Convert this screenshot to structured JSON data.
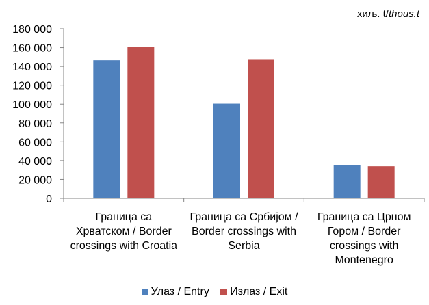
{
  "unit_note": {
    "prefix": "хиљ. t/",
    "italic": "thous.t"
  },
  "colors": {
    "entry": "#4F81BD",
    "exit": "#C0504D",
    "axis": "#868686"
  },
  "chart_data": {
    "type": "bar",
    "categories": [
      [
        "Граница са",
        "Хрватском / Border",
        "crossings with Croatia"
      ],
      [
        "Граница са Србијом /",
        "Border crossings with",
        "Serbia"
      ],
      [
        "Граница са Црном",
        "Гором / Border",
        "crossings with",
        "Montenegro"
      ]
    ],
    "series": [
      {
        "name": "Улаз / Entry",
        "values": [
          146500,
          100500,
          35000
        ]
      },
      {
        "name": "Излаз / Exit",
        "values": [
          161000,
          147000,
          34000
        ]
      }
    ],
    "ylim": [
      0,
      180000
    ],
    "yticks": [
      "0",
      "20 000",
      "40 000",
      "60 000",
      "80 000",
      "100 000",
      "120 000",
      "140 000",
      "160 000",
      "180 000"
    ],
    "grid": false,
    "legend": "bottom"
  }
}
